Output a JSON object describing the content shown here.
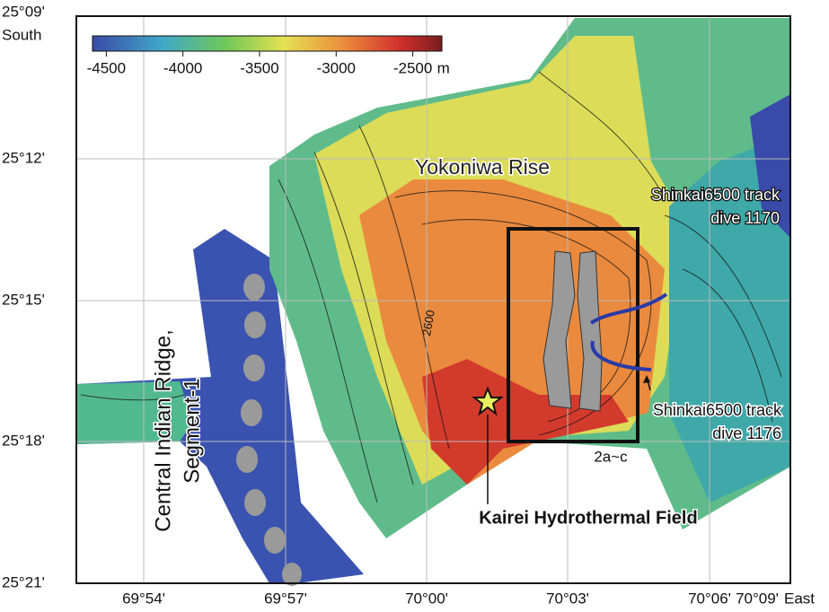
{
  "map": {
    "colorbar": {
      "lim": [
        -4590,
        -2310
      ],
      "ticks": [
        -4500,
        -4000,
        -3500,
        -3000,
        -2500
      ],
      "unit": "m"
    },
    "lat_labels": [
      "25°09'",
      "25°12'",
      "25°15'",
      "25°18'",
      "25°21'"
    ],
    "south_label": "South",
    "lon_labels": [
      "69°54'",
      "69°57'",
      "70°00'",
      "70°03'",
      "70°06'",
      "70°09'"
    ],
    "east_label": "East",
    "labels": {
      "rise": "Yokoniwa Rise",
      "ridge_line1": "Central Indian Ridge,",
      "ridge_line2": "Segment-1",
      "contour": "2600",
      "track1170_line1": "Shinkai6500 track",
      "track1170_line2": "dive 1170",
      "track1176_line1": "Shinkai6500 track",
      "track1176_line2": "dive 1176",
      "box": "2a~c",
      "field": "Kairei Hydrothermal Field"
    }
  }
}
